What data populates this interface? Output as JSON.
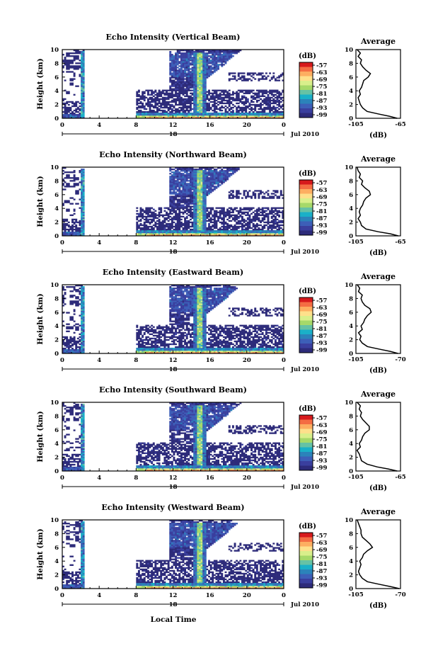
{
  "figure": {
    "xlabel": "Local Time",
    "colorbar_unit": "(dB)",
    "colorbar_ticks": [
      "-57",
      "-63",
      "-69",
      "-75",
      "-81",
      "-87",
      "-93",
      "-99"
    ],
    "colorbar_colors": [
      "#d7191c",
      "#f46d43",
      "#fdae61",
      "#fee08b",
      "#d9ef8b",
      "#a6d96a",
      "#66c2a5",
      "#1ab0c8",
      "#2b83ba",
      "#3d5fb8",
      "#3a3f9e",
      "#2d2b7a"
    ],
    "date_label": "Jul 2010",
    "avg_xlabel": "(dB)"
  },
  "chart_data": [
    {
      "type": "heatmap",
      "title": "Echo Intensity (Vertical Beam)",
      "ylabel": "Height (km)",
      "xlabel": "",
      "x_ticks": [
        "0",
        "4",
        "8",
        "12",
        "16",
        "20",
        "0"
      ],
      "y_ticks": [
        "0",
        "2",
        "4",
        "6",
        "8",
        "10"
      ],
      "xlim": [
        0,
        24
      ],
      "ylim": [
        0,
        10
      ],
      "day_label": "18",
      "profile": {
        "title": "Average",
        "xlim": [
          -105,
          -65
        ],
        "x_ticks": [
          "-105",
          "-65"
        ],
        "heights": [
          0.0,
          0.3,
          0.6,
          1.0,
          1.5,
          2.0,
          2.5,
          3.0,
          3.5,
          4.0,
          4.5,
          5.0,
          5.5,
          6.0,
          6.5,
          7.0,
          7.5,
          8.0,
          8.5,
          9.0,
          9.5,
          10.0
        ],
        "values": [
          -68,
          -75,
          -84,
          -95,
          -99,
          -101,
          -102,
          -103,
          -101,
          -102,
          -100,
          -99,
          -98,
          -94,
          -92,
          -96,
          -99,
          -101,
          -100,
          -103,
          -101,
          -104
        ]
      }
    },
    {
      "type": "heatmap",
      "title": "Echo Intensity (Northward Beam)",
      "ylabel": "Height (km)",
      "xlabel": "",
      "x_ticks": [
        "0",
        "4",
        "8",
        "12",
        "16",
        "20",
        "0"
      ],
      "y_ticks": [
        "0",
        "2",
        "4",
        "6",
        "8",
        "10"
      ],
      "xlim": [
        0,
        24
      ],
      "ylim": [
        0,
        10
      ],
      "day_label": "18",
      "profile": {
        "title": "Average",
        "xlim": [
          -105,
          -65
        ],
        "x_ticks": [
          "-105",
          "-65"
        ],
        "heights": [
          0.0,
          0.3,
          0.6,
          1.0,
          1.5,
          2.0,
          2.5,
          3.0,
          3.5,
          4.0,
          4.5,
          5.0,
          5.5,
          6.0,
          6.5,
          7.0,
          7.5,
          8.0,
          8.5,
          9.0,
          9.5,
          10.0
        ],
        "values": [
          -67,
          -74,
          -85,
          -96,
          -100,
          -101,
          -103,
          -101,
          -102,
          -101,
          -99,
          -98,
          -96,
          -92,
          -93,
          -97,
          -100,
          -99,
          -102,
          -101,
          -103,
          -104
        ]
      }
    },
    {
      "type": "heatmap",
      "title": "Echo Intensity (Eastward Beam)",
      "ylabel": "Height (km)",
      "xlabel": "",
      "x_ticks": [
        "0",
        "4",
        "8",
        "12",
        "16",
        "20",
        "0"
      ],
      "y_ticks": [
        "0",
        "2",
        "4",
        "6",
        "8",
        "10"
      ],
      "xlim": [
        0,
        24
      ],
      "ylim": [
        0,
        10
      ],
      "day_label": "18",
      "profile": {
        "title": "Average",
        "xlim": [
          -105,
          -70
        ],
        "x_ticks": [
          "-105",
          "-70"
        ],
        "heights": [
          0.0,
          0.3,
          0.6,
          1.0,
          1.5,
          2.0,
          2.5,
          3.0,
          3.5,
          4.0,
          4.5,
          5.0,
          5.5,
          6.0,
          6.5,
          7.0,
          7.5,
          8.0,
          8.5,
          9.0,
          9.5,
          10.0
        ],
        "values": [
          -72,
          -78,
          -86,
          -96,
          -100,
          -102,
          -101,
          -103,
          -100,
          -101,
          -99,
          -98,
          -96,
          -93,
          -94,
          -98,
          -100,
          -101,
          -100,
          -103,
          -102,
          -104
        ]
      }
    },
    {
      "type": "heatmap",
      "title": "Echo Intensity (Southward Beam)",
      "ylabel": "Height (km)",
      "xlabel": "",
      "x_ticks": [
        "0",
        "4",
        "8",
        "12",
        "16",
        "20",
        "0"
      ],
      "y_ticks": [
        "0",
        "2",
        "4",
        "6",
        "8",
        "10"
      ],
      "xlim": [
        0,
        24
      ],
      "ylim": [
        0,
        10
      ],
      "day_label": "18",
      "profile": {
        "title": "Average",
        "xlim": [
          -105,
          -65
        ],
        "x_ticks": [
          "-105",
          "-65"
        ],
        "heights": [
          0.0,
          0.3,
          0.6,
          1.0,
          1.5,
          2.0,
          2.5,
          3.0,
          3.5,
          4.0,
          4.5,
          5.0,
          5.5,
          6.0,
          6.5,
          7.0,
          7.5,
          8.0,
          8.5,
          9.0,
          9.5,
          10.0
        ],
        "values": [
          -68,
          -76,
          -86,
          -95,
          -100,
          -101,
          -102,
          -104,
          -101,
          -102,
          -100,
          -99,
          -97,
          -93,
          -93,
          -96,
          -99,
          -101,
          -100,
          -102,
          -101,
          -104
        ]
      }
    },
    {
      "type": "heatmap",
      "title": "Echo Intensity (Westward Beam)",
      "ylabel": "Height (km)",
      "xlabel": "Local Time",
      "x_ticks": [
        "0",
        "4",
        "8",
        "12",
        "16",
        "20",
        "0"
      ],
      "y_ticks": [
        "0",
        "2",
        "4",
        "6",
        "8",
        "10"
      ],
      "xlim": [
        0,
        24
      ],
      "ylim": [
        0,
        10
      ],
      "day_label": "18",
      "profile": {
        "title": "Average",
        "xlim": [
          -105,
          -70
        ],
        "x_ticks": [
          "-105",
          "-70"
        ],
        "heights": [
          0.0,
          0.3,
          0.6,
          1.0,
          1.5,
          2.0,
          2.5,
          3.0,
          3.5,
          4.0,
          4.5,
          5.0,
          5.5,
          6.0,
          6.5,
          7.0,
          7.5,
          8.0,
          8.5,
          9.0,
          9.5,
          10.0
        ],
        "values": [
          -71,
          -78,
          -86,
          -96,
          -100,
          -102,
          -103,
          -102,
          -101,
          -102,
          -100,
          -99,
          -96,
          -92,
          -94,
          -97,
          -100,
          -101,
          -101,
          -102,
          -103,
          -104
        ]
      }
    }
  ]
}
